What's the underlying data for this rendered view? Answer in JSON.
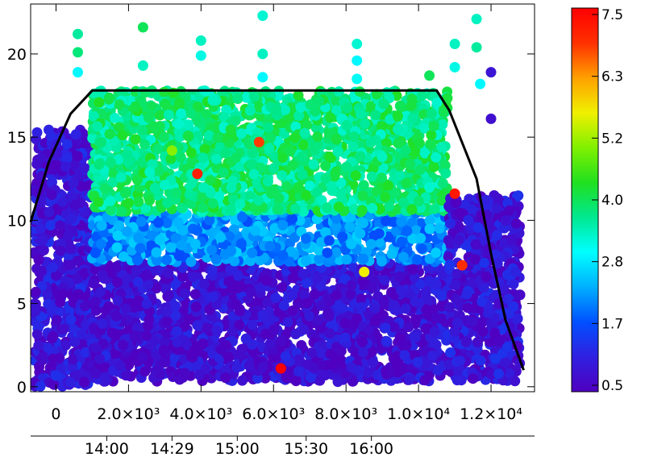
{
  "chart_data": {
    "type": "scatter",
    "title": "",
    "xlabel": "",
    "ylabel": "",
    "xlim": [
      -700,
      13200
    ],
    "ylim": [
      -0.3,
      23.0
    ],
    "x_ticks": [
      {
        "value": 0,
        "label": "0"
      },
      {
        "value": 2000,
        "label": "2.0×10³"
      },
      {
        "value": 4000,
        "label": "4.0×10³"
      },
      {
        "value": 6000,
        "label": "6.0×10³"
      },
      {
        "value": 8000,
        "label": "8.0×10³"
      },
      {
        "value": 10000,
        "label": "1.0×10⁴"
      },
      {
        "value": 12000,
        "label": "1.2×10⁴"
      }
    ],
    "y_ticks": [
      {
        "value": 0,
        "label": "0"
      },
      {
        "value": 5,
        "label": "5"
      },
      {
        "value": 10,
        "label": "10"
      },
      {
        "value": 15,
        "label": "15"
      },
      {
        "value": 20,
        "label": "20"
      }
    ],
    "time_axis": [
      {
        "value": 1400,
        "label": "14:00"
      },
      {
        "value": 3200,
        "label": "14:29"
      },
      {
        "value": 5000,
        "label": "15:00"
      },
      {
        "value": 6900,
        "label": "15:30"
      },
      {
        "value": 8700,
        "label": "16:00"
      }
    ],
    "colorbar": {
      "range": [
        0.5,
        7.5
      ],
      "tick_labels": [
        "7.5",
        "6.3",
        "5.2",
        "4.0",
        "2.8",
        "1.7",
        "0.5"
      ],
      "tick_values": [
        7.5,
        6.3,
        5.2,
        4.0,
        2.8,
        1.7,
        0.5
      ],
      "colormap": [
        "#5000c0",
        "#3020e0",
        "#0050ff",
        "#00b0ff",
        "#00ffff",
        "#00e890",
        "#20e020",
        "#80f000",
        "#f0f000",
        "#ffa000",
        "#ff3000",
        "#ff0000"
      ]
    },
    "envelope_line": {
      "color": "#000000",
      "x": [
        -700,
        -200,
        400,
        1000,
        10500,
        10850,
        11600,
        12000,
        12400,
        12900
      ],
      "y": [
        9.9,
        13.5,
        16.4,
        17.8,
        17.8,
        16.6,
        12.5,
        8.0,
        4.0,
        1.0
      ]
    },
    "series": [
      {
        "data_description": "dense per-sample scatter colored by value; clustered points",
        "clusters": [
          {
            "x": [
              -600,
              1000
            ],
            "y": [
              0,
              15.5
            ],
            "c": 0.9,
            "density": "high"
          },
          {
            "x": [
              1000,
              10800
            ],
            "y": [
              0.3,
              7.5
            ],
            "c": 0.8,
            "density": "high"
          },
          {
            "x": [
              1000,
              10800
            ],
            "y": [
              7.5,
              10.5
            ],
            "c": 2.2,
            "density": "high"
          },
          {
            "x": [
              1000,
              10800
            ],
            "y": [
              10.5,
              17.8
            ],
            "c": 3.8,
            "density": "high"
          },
          {
            "x": [
              10800,
              12800
            ],
            "y": [
              0.3,
              11.5
            ],
            "c": 0.9,
            "density": "high"
          }
        ],
        "isolated_points": [
          {
            "x": 600,
            "y": 21.2,
            "c": 3.6
          },
          {
            "x": 600,
            "y": 20.1,
            "c": 3.8
          },
          {
            "x": 600,
            "y": 18.9,
            "c": 3.0
          },
          {
            "x": 2400,
            "y": 21.6,
            "c": 4.0
          },
          {
            "x": 2400,
            "y": 19.3,
            "c": 3.4
          },
          {
            "x": 4000,
            "y": 20.8,
            "c": 3.4
          },
          {
            "x": 4000,
            "y": 19.9,
            "c": 3.2
          },
          {
            "x": 5700,
            "y": 22.3,
            "c": 3.3
          },
          {
            "x": 5700,
            "y": 20.0,
            "c": 3.4
          },
          {
            "x": 5700,
            "y": 18.6,
            "c": 3.0
          },
          {
            "x": 8300,
            "y": 20.6,
            "c": 3.3
          },
          {
            "x": 8300,
            "y": 19.6,
            "c": 3.0
          },
          {
            "x": 8300,
            "y": 18.5,
            "c": 3.1
          },
          {
            "x": 10300,
            "y": 18.7,
            "c": 4.0
          },
          {
            "x": 11000,
            "y": 20.6,
            "c": 3.4
          },
          {
            "x": 11000,
            "y": 19.2,
            "c": 3.2
          },
          {
            "x": 11600,
            "y": 22.1,
            "c": 3.4
          },
          {
            "x": 11600,
            "y": 20.4,
            "c": 3.6
          },
          {
            "x": 11700,
            "y": 18.2,
            "c": 3.0
          },
          {
            "x": 12000,
            "y": 18.9,
            "c": 0.9
          },
          {
            "x": 12000,
            "y": 16.1,
            "c": 0.8
          },
          {
            "x": 6200,
            "y": 1.1,
            "c": 7.5
          },
          {
            "x": 5600,
            "y": 14.7,
            "c": 6.8
          },
          {
            "x": 3900,
            "y": 12.8,
            "c": 7.1
          },
          {
            "x": 11000,
            "y": 11.6,
            "c": 7.2
          },
          {
            "x": 11200,
            "y": 7.3,
            "c": 6.9
          },
          {
            "x": 3200,
            "y": 14.2,
            "c": 5.0
          },
          {
            "x": 8500,
            "y": 6.9,
            "c": 5.6
          },
          {
            "x": 12400,
            "y": 10.0,
            "c": 0.8
          }
        ]
      }
    ]
  }
}
